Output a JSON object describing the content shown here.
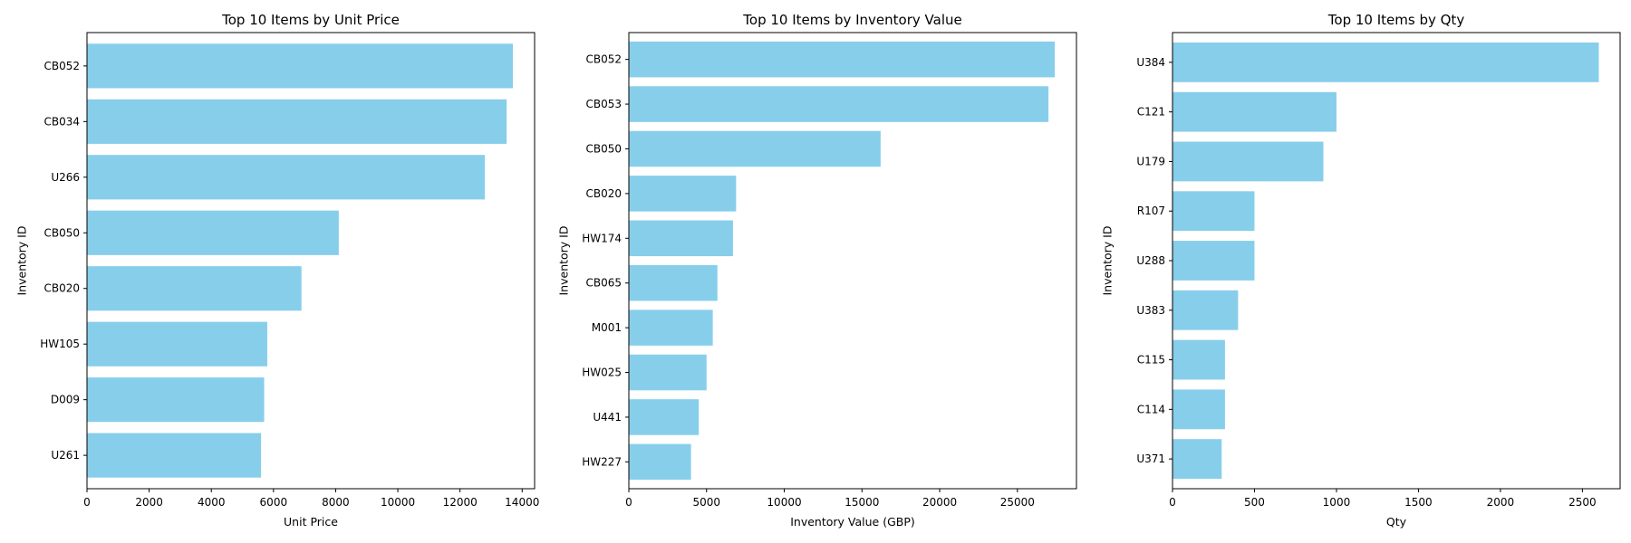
{
  "chart_data": [
    {
      "type": "bar",
      "orientation": "horizontal",
      "title": "Top 10 Items by Unit Price",
      "xlabel": "Unit Price",
      "ylabel": "Inventory ID",
      "xlim": [
        0,
        14400
      ],
      "xticks": [
        0,
        2000,
        4000,
        6000,
        8000,
        10000,
        12000,
        14000
      ],
      "bar_color": "#87ceeb",
      "grid": false,
      "categories": [
        "CB052",
        "CB034",
        "U266",
        "CB050",
        "CB020",
        "HW105",
        "D009",
        "U261"
      ],
      "values": [
        13700,
        13500,
        12800,
        8100,
        6900,
        5800,
        5700,
        5600
      ]
    },
    {
      "type": "bar",
      "orientation": "horizontal",
      "title": "Top 10 Items by Inventory Value",
      "xlabel": "Inventory Value (GBP)",
      "ylabel": "Inventory ID",
      "xlim": [
        0,
        28800
      ],
      "xticks": [
        0,
        5000,
        10000,
        15000,
        20000,
        25000
      ],
      "bar_color": "#87ceeb",
      "grid": false,
      "categories": [
        "CB052",
        "CB053",
        "CB050",
        "CB020",
        "HW174",
        "CB065",
        "M001",
        "HW025",
        "U441",
        "HW227"
      ],
      "values": [
        27400,
        27000,
        16200,
        6900,
        6700,
        5700,
        5400,
        5000,
        4500,
        4000
      ]
    },
    {
      "type": "bar",
      "orientation": "horizontal",
      "title": "Top 10 Items by Qty",
      "xlabel": "Qty",
      "ylabel": "Inventory ID",
      "xlim": [
        0,
        2730
      ],
      "xticks": [
        0,
        500,
        1000,
        1500,
        2000,
        2500
      ],
      "bar_color": "#87ceeb",
      "grid": false,
      "categories": [
        "U384",
        "C121",
        "U179",
        "R107",
        "U288",
        "U383",
        "C115",
        "C114",
        "U371"
      ],
      "values": [
        2600,
        1000,
        920,
        500,
        500,
        400,
        320,
        320,
        300
      ]
    }
  ]
}
